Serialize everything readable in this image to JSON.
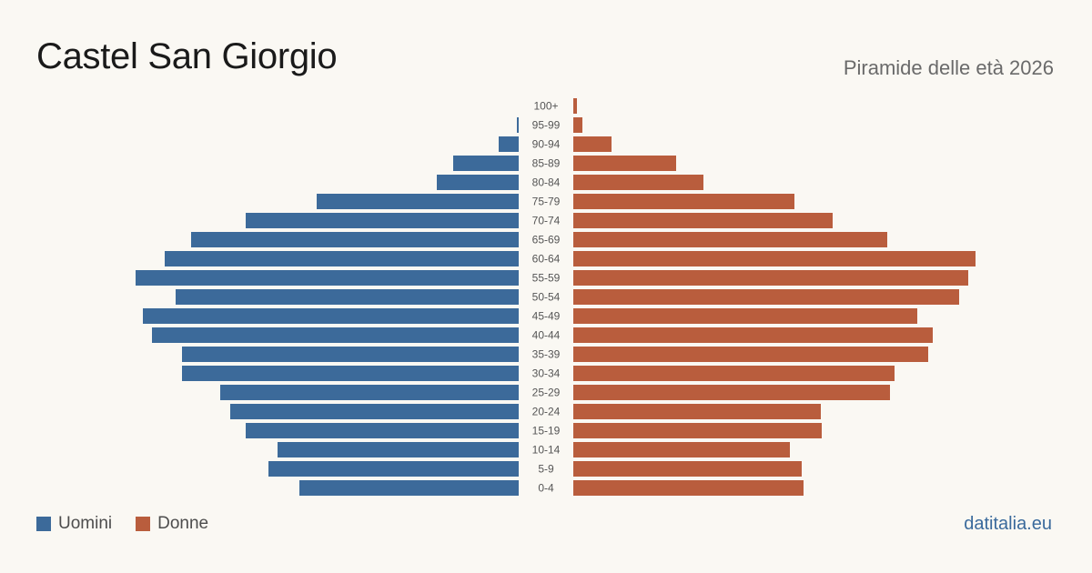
{
  "header": {
    "title": "Castel San Giorgio",
    "subtitle": "Piramide delle età 2026"
  },
  "legend": {
    "men_label": "Uomini",
    "women_label": "Donne"
  },
  "footer": {
    "source": "datitalia.eu"
  },
  "colors": {
    "men": "#3c6a9a",
    "women": "#b95d3d",
    "background": "#faf8f3",
    "age_label": "#555555"
  },
  "chart_data": {
    "type": "bar",
    "orientation": "horizontal-pyramid",
    "categories": [
      "100+",
      "95-99",
      "90-94",
      "85-89",
      "80-84",
      "75-79",
      "70-74",
      "65-69",
      "60-64",
      "55-59",
      "50-54",
      "45-49",
      "40-44",
      "35-39",
      "30-34",
      "25-29",
      "20-24",
      "15-19",
      "10-14",
      "5-9",
      "0-4"
    ],
    "series": [
      {
        "name": "Uomini",
        "values": [
          0,
          2,
          22,
          72,
          90,
          222,
          300,
          360,
          389,
          421,
          377,
          413,
          403,
          370,
          370,
          328,
          317,
          300,
          265,
          275,
          241
        ]
      },
      {
        "name": "Donne",
        "values": [
          4,
          10,
          42,
          113,
          143,
          243,
          285,
          345,
          442,
          434,
          424,
          378,
          395,
          390,
          353,
          348,
          272,
          273,
          238,
          251,
          253
        ]
      }
    ],
    "xlim": [
      0,
      450
    ],
    "grid": false,
    "legend_position": "bottom-left"
  }
}
